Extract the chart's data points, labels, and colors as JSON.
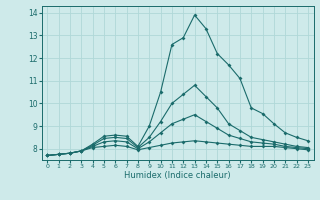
{
  "xlabel": "Humidex (Indice chaleur)",
  "bg_color": "#ceeaea",
  "grid_color": "#b0d8d8",
  "line_color": "#1a6b6b",
  "xlim": [
    -0.5,
    23.5
  ],
  "ylim": [
    7.5,
    14.3
  ],
  "xticks": [
    0,
    1,
    2,
    3,
    4,
    5,
    6,
    7,
    8,
    9,
    10,
    11,
    12,
    13,
    14,
    15,
    16,
    17,
    18,
    19,
    20,
    21,
    22,
    23
  ],
  "yticks": [
    8,
    9,
    10,
    11,
    12,
    13,
    14
  ],
  "series": [
    [
      7.7,
      7.75,
      7.8,
      7.9,
      8.2,
      8.55,
      8.6,
      8.55,
      8.1,
      9.0,
      10.5,
      12.6,
      12.9,
      13.9,
      13.3,
      12.2,
      11.7,
      11.1,
      9.8,
      9.55,
      9.1,
      8.7,
      8.5,
      8.35
    ],
    [
      7.7,
      7.75,
      7.8,
      7.9,
      8.15,
      8.45,
      8.5,
      8.45,
      8.05,
      8.5,
      9.2,
      10.0,
      10.4,
      10.8,
      10.3,
      9.8,
      9.1,
      8.8,
      8.5,
      8.4,
      8.3,
      8.2,
      8.1,
      8.05
    ],
    [
      7.7,
      7.75,
      7.8,
      7.9,
      8.1,
      8.3,
      8.35,
      8.3,
      8.0,
      8.3,
      8.7,
      9.1,
      9.3,
      9.5,
      9.2,
      8.9,
      8.6,
      8.45,
      8.3,
      8.25,
      8.2,
      8.1,
      8.05,
      8.0
    ],
    [
      7.7,
      7.75,
      7.8,
      7.9,
      8.05,
      8.1,
      8.15,
      8.1,
      7.95,
      8.05,
      8.15,
      8.25,
      8.3,
      8.35,
      8.3,
      8.25,
      8.2,
      8.15,
      8.1,
      8.1,
      8.1,
      8.05,
      8.0,
      7.95
    ]
  ]
}
